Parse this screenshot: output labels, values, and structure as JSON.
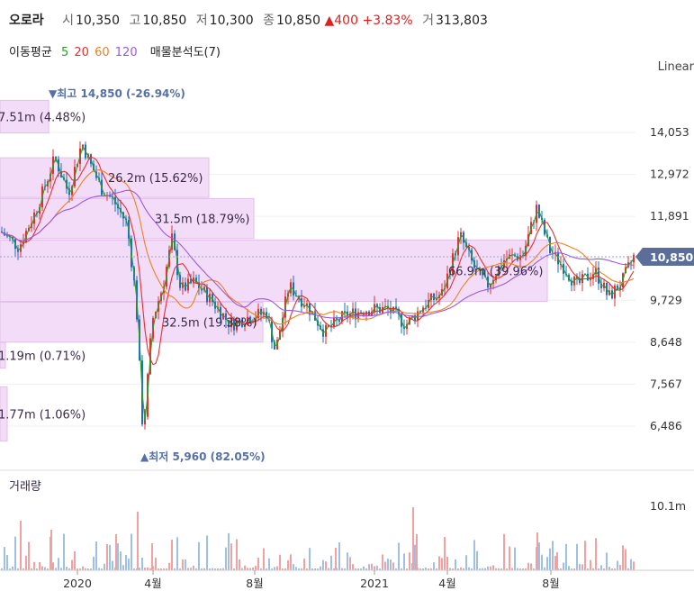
{
  "header": {
    "name": "오로라",
    "open_label": "시",
    "open": "10,350",
    "high_label": "고",
    "high": "10,850",
    "low_label": "저",
    "low": "10,300",
    "close_label": "종",
    "close": "10,850",
    "change_arrow": "▲",
    "change": "400",
    "change_pct": "+3.83%",
    "volume_label": "거",
    "volume": "313,803"
  },
  "ma_legend": {
    "title": "이동평균",
    "periods": [
      {
        "label": "5",
        "color": "#2aa02a"
      },
      {
        "label": "20",
        "color": "#e03030"
      },
      {
        "label": "60",
        "color": "#f08020"
      },
      {
        "label": "120",
        "color": "#9a5ae0"
      }
    ],
    "profile_label": "매물분석도(7)"
  },
  "scale_mode": "Linear",
  "colors": {
    "up": "#e03030",
    "down": "#1a6fc0",
    "profile": "#f3dcf7",
    "current_badge": "#5b6e9a"
  },
  "chart_data": {
    "type": "candlestick",
    "y_ticks": [
      14053,
      12972,
      11891,
      10810,
      9729,
      8648,
      7567,
      6486
    ],
    "y_tick_labels": [
      "14,053",
      "12,972",
      "11,891",
      "",
      "9,729",
      "8,648",
      "7,567",
      "6,486"
    ],
    "current_price": 10850,
    "current_price_label": "10,850",
    "x_tick_labels": [
      "2020",
      "4월",
      "8월",
      "2021",
      "4월",
      "8월"
    ],
    "high_annotation": "최고 14,850 (-26.94%)",
    "low_annotation": "최저 5,960 (82.05%)",
    "volume_profile": [
      {
        "label": "7.51m (4.48%)",
        "price_low": 14040,
        "price_high": 14880
      },
      {
        "label": "26.2m (15.62%)",
        "price_low": 12380,
        "price_high": 13400
      },
      {
        "label": "31.5m (18.79%)",
        "price_low": 11320,
        "price_high": 12350
      },
      {
        "label": "66.9m (39.96%)",
        "price_low": 9700,
        "price_high": 11280
      },
      {
        "label": "32.5m (19.38%)",
        "price_low": 8650,
        "price_high": 9680
      },
      {
        "label": "1.19m (0.71%)",
        "price_low": 7980,
        "price_high": 8640
      },
      {
        "label": "1.77m (1.06%)",
        "price_low": 6100,
        "price_high": 7500
      }
    ],
    "volume_title": "거래량",
    "volume_tick_label": "10.1m"
  }
}
